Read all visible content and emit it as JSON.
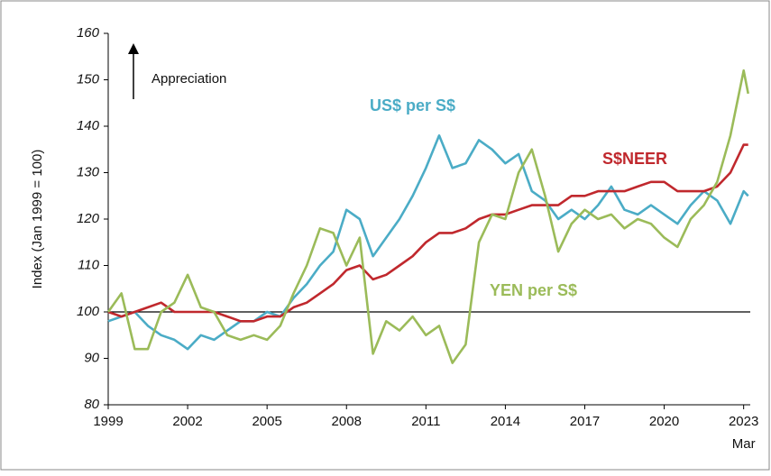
{
  "chart_data": {
    "type": "line",
    "ylabel": "Index  (Jan 1999 = 100)",
    "annotation": "Appreciation",
    "xtick_sublabel": "Mar",
    "hline": 100,
    "xlim": [
      1999,
      2023.25
    ],
    "ylim": [
      80,
      160
    ],
    "xticks": [
      1999,
      2002,
      2005,
      2008,
      2011,
      2014,
      2017,
      2020,
      2023
    ],
    "yticks": [
      80,
      90,
      100,
      110,
      120,
      130,
      140,
      150,
      160
    ],
    "x": [
      1999,
      1999.5,
      2000,
      2000.5,
      2001,
      2001.5,
      2002,
      2002.5,
      2003,
      2003.5,
      2004,
      2004.5,
      2005,
      2005.5,
      2006,
      2006.5,
      2007,
      2007.5,
      2008,
      2008.5,
      2009,
      2009.5,
      2010,
      2010.5,
      2011,
      2011.5,
      2012,
      2012.5,
      2013,
      2013.5,
      2014,
      2014.5,
      2015,
      2015.5,
      2016,
      2016.5,
      2017,
      2017.5,
      2018,
      2018.5,
      2019,
      2019.5,
      2020,
      2020.5,
      2021,
      2021.5,
      2022,
      2022.5,
      2023,
      2023.17
    ],
    "series": [
      {
        "name": "US$ per S$",
        "color": "#4bacc6",
        "values": [
          98,
          99,
          100,
          97,
          95,
          94,
          92,
          95,
          94,
          96,
          98,
          98,
          100,
          99,
          103,
          106,
          110,
          113,
          122,
          120,
          112,
          116,
          120,
          125,
          131,
          138,
          131,
          132,
          137,
          135,
          132,
          134,
          126,
          124,
          120,
          122,
          120,
          123,
          127,
          122,
          121,
          123,
          121,
          119,
          123,
          126,
          124,
          119,
          126,
          125
        ]
      },
      {
        "name": "S$NEER",
        "color": "#c0282d",
        "values": [
          100,
          99,
          100,
          101,
          102,
          100,
          100,
          100,
          100,
          99,
          98,
          98,
          99,
          99,
          101,
          102,
          104,
          106,
          109,
          110,
          107,
          108,
          110,
          112,
          115,
          117,
          117,
          118,
          120,
          121,
          121,
          122,
          123,
          123,
          123,
          125,
          125,
          126,
          126,
          126,
          127,
          128,
          128,
          126,
          126,
          126,
          127,
          130,
          136,
          136
        ]
      },
      {
        "name": "YEN per S$",
        "color": "#9bbb59",
        "values": [
          100,
          104,
          92,
          92,
          100,
          102,
          108,
          101,
          100,
          95,
          94,
          95,
          94,
          97,
          104,
          110,
          118,
          117,
          110,
          116,
          91,
          98,
          96,
          99,
          95,
          97,
          89,
          93,
          115,
          121,
          120,
          130,
          135,
          125,
          113,
          119,
          122,
          120,
          121,
          118,
          120,
          119,
          116,
          114,
          120,
          123,
          128,
          138,
          152,
          147
        ]
      }
    ]
  }
}
